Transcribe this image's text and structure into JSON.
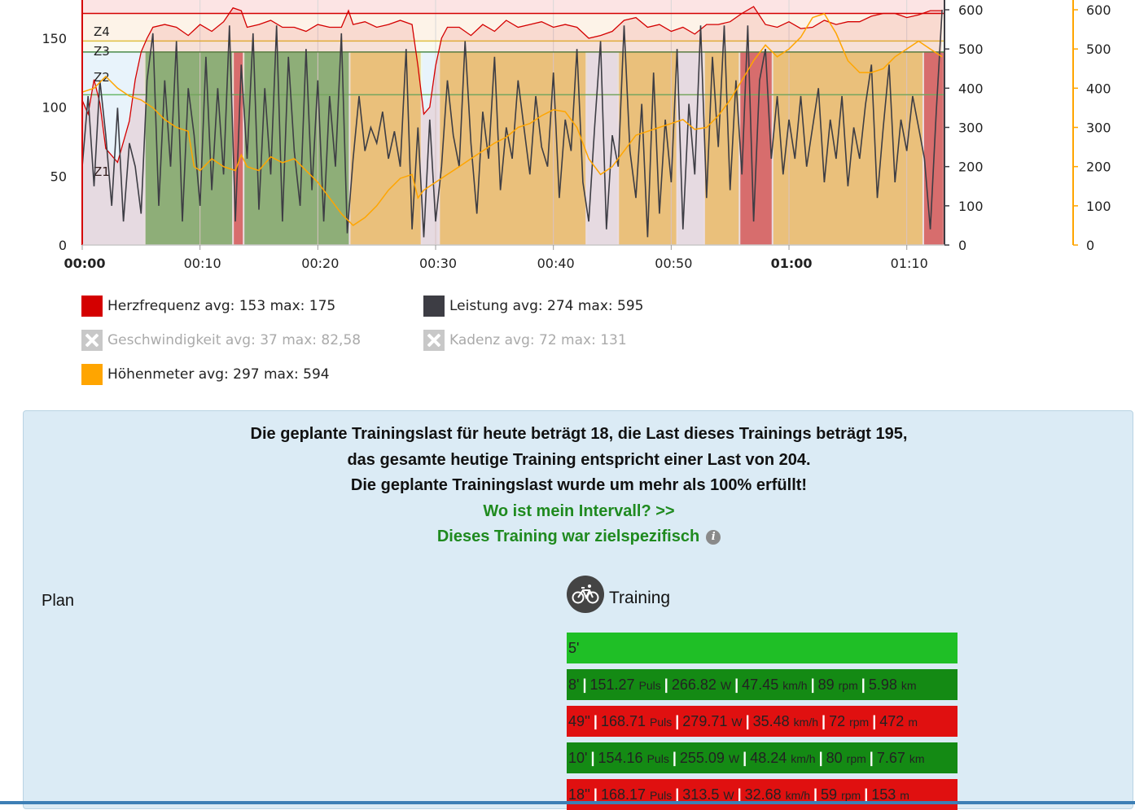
{
  "chart_data": {
    "type": "area",
    "x_ticks": [
      "00:00",
      "00:10",
      "00:20",
      "00:30",
      "00:40",
      "00:50",
      "01:00",
      "01:10"
    ],
    "x_ticks_bold": [
      "00:00",
      "01:00"
    ],
    "y_left_ticks": [
      0,
      50,
      100,
      150
    ],
    "y_right_ticks": [
      0,
      100,
      200,
      300,
      400,
      500,
      600
    ],
    "y_far_right_ticks": [
      0,
      100,
      200,
      300,
      400,
      500,
      600
    ],
    "zone_labels": [
      "Z4",
      "Z3",
      "Z2",
      "Z1"
    ],
    "power_zone_blocks": [
      {
        "start": 0.0,
        "end": 5.3,
        "zone": "Z1"
      },
      {
        "start": 5.3,
        "end": 12.8,
        "zone": "Z3"
      },
      {
        "start": 12.8,
        "end": 13.7,
        "zone": "Z5"
      },
      {
        "start": 13.7,
        "end": 22.7,
        "zone": "Z3"
      },
      {
        "start": 22.7,
        "end": 28.8,
        "zone": "Z4"
      },
      {
        "start": 28.8,
        "end": 30.3,
        "zone": "Z1"
      },
      {
        "start": 30.3,
        "end": 42.8,
        "zone": "Z4"
      },
      {
        "start": 42.8,
        "end": 45.5,
        "zone": "Z1"
      },
      {
        "start": 45.5,
        "end": 50.5,
        "zone": "Z4"
      },
      {
        "start": 50.5,
        "end": 52.8,
        "zone": "Z1"
      },
      {
        "start": 52.8,
        "end": 55.8,
        "zone": "Z4"
      },
      {
        "start": 55.8,
        "end": 58.6,
        "zone": "Z5"
      },
      {
        "start": 58.6,
        "end": 71.4,
        "zone": "Z4"
      },
      {
        "start": 71.4,
        "end": 73.2,
        "zone": "Z5"
      }
    ],
    "heart_rate_series": [
      [
        0,
        105
      ],
      [
        0.5,
        95
      ],
      [
        1,
        120
      ],
      [
        1.5,
        103
      ],
      [
        2,
        70
      ],
      [
        3,
        60
      ],
      [
        4,
        90
      ],
      [
        4.5,
        120
      ],
      [
        5,
        140
      ],
      [
        5.5,
        150
      ],
      [
        6,
        158
      ],
      [
        7,
        160
      ],
      [
        8,
        158
      ],
      [
        9,
        152
      ],
      [
        10,
        160
      ],
      [
        11,
        155
      ],
      [
        12,
        162
      ],
      [
        12.8,
        172
      ],
      [
        13.5,
        170
      ],
      [
        14,
        158
      ],
      [
        15,
        160
      ],
      [
        16,
        163
      ],
      [
        17,
        158
      ],
      [
        18,
        158
      ],
      [
        19,
        155
      ],
      [
        20,
        160
      ],
      [
        21,
        158
      ],
      [
        22,
        158
      ],
      [
        22.6,
        170
      ],
      [
        23,
        160
      ],
      [
        24,
        162
      ],
      [
        25,
        158
      ],
      [
        26,
        160
      ],
      [
        27,
        163
      ],
      [
        28,
        160
      ],
      [
        28.5,
        130
      ],
      [
        29,
        95
      ],
      [
        29.5,
        100
      ],
      [
        30,
        130
      ],
      [
        30.5,
        150
      ],
      [
        31,
        158
      ],
      [
        32,
        158
      ],
      [
        33,
        152
      ],
      [
        34,
        160
      ],
      [
        35,
        155
      ],
      [
        36,
        163
      ],
      [
        37,
        158
      ],
      [
        38,
        160
      ],
      [
        39,
        162
      ],
      [
        40,
        158
      ],
      [
        41,
        160
      ],
      [
        42,
        158
      ],
      [
        43,
        150
      ],
      [
        44,
        152
      ],
      [
        45,
        155
      ],
      [
        46,
        163
      ],
      [
        47,
        165
      ],
      [
        48,
        158
      ],
      [
        49,
        160
      ],
      [
        50,
        155
      ],
      [
        51,
        158
      ],
      [
        52,
        153
      ],
      [
        53,
        160
      ],
      [
        54,
        160
      ],
      [
        55,
        162
      ],
      [
        56,
        168
      ],
      [
        57,
        173
      ],
      [
        58,
        160
      ],
      [
        59,
        158
      ],
      [
        60,
        162
      ],
      [
        61,
        157
      ],
      [
        62,
        158
      ],
      [
        63,
        163
      ],
      [
        64,
        160
      ],
      [
        65,
        162
      ],
      [
        66,
        162
      ],
      [
        67,
        166
      ],
      [
        68,
        168
      ],
      [
        69,
        168
      ],
      [
        70,
        165
      ],
      [
        71,
        167
      ],
      [
        72,
        170
      ],
      [
        73,
        170
      ]
    ],
    "power_series": [
      [
        0,
        200
      ],
      [
        0.5,
        380
      ],
      [
        1,
        150
      ],
      [
        1.5,
        420
      ],
      [
        2,
        280
      ],
      [
        2.5,
        100
      ],
      [
        3,
        350
      ],
      [
        3.5,
        60
      ],
      [
        4,
        260
      ],
      [
        4.5,
        200
      ],
      [
        5,
        80
      ],
      [
        5.5,
        420
      ],
      [
        6,
        540
      ],
      [
        6.5,
        100
      ],
      [
        7,
        420
      ],
      [
        7.5,
        200
      ],
      [
        8,
        520
      ],
      [
        8.5,
        60
      ],
      [
        9,
        400
      ],
      [
        9.5,
        280
      ],
      [
        10,
        100
      ],
      [
        10.5,
        480
      ],
      [
        11,
        140
      ],
      [
        11.5,
        400
      ],
      [
        12,
        180
      ],
      [
        12.5,
        560
      ],
      [
        13,
        60
      ],
      [
        13.5,
        460
      ],
      [
        14,
        220
      ],
      [
        14.5,
        540
      ],
      [
        15,
        90
      ],
      [
        15.5,
        400
      ],
      [
        16,
        180
      ],
      [
        16.5,
        560
      ],
      [
        17,
        60
      ],
      [
        17.5,
        480
      ],
      [
        18,
        240
      ],
      [
        18.5,
        100
      ],
      [
        19,
        500
      ],
      [
        19.5,
        140
      ],
      [
        20,
        420
      ],
      [
        20.5,
        60
      ],
      [
        21,
        380
      ],
      [
        21.5,
        200
      ],
      [
        22,
        540
      ],
      [
        22.5,
        30
      ],
      [
        23,
        220
      ],
      [
        23.5,
        380
      ],
      [
        24,
        240
      ],
      [
        24.5,
        300
      ],
      [
        25,
        260
      ],
      [
        25.5,
        340
      ],
      [
        26,
        220
      ],
      [
        26.5,
        290
      ],
      [
        27,
        200
      ],
      [
        27.5,
        500
      ],
      [
        28,
        40
      ],
      [
        28.5,
        300
      ],
      [
        29,
        20
      ],
      [
        29.5,
        320
      ],
      [
        30,
        60
      ],
      [
        30.5,
        200
      ],
      [
        31,
        420
      ],
      [
        31.5,
        280
      ],
      [
        32,
        200
      ],
      [
        32.5,
        520
      ],
      [
        33,
        260
      ],
      [
        33.5,
        80
      ],
      [
        34,
        340
      ],
      [
        34.5,
        220
      ],
      [
        35,
        480
      ],
      [
        35.5,
        140
      ],
      [
        36,
        300
      ],
      [
        36.5,
        220
      ],
      [
        37,
        420
      ],
      [
        37.5,
        300
      ],
      [
        38,
        180
      ],
      [
        38.5,
        380
      ],
      [
        39,
        250
      ],
      [
        39.5,
        200
      ],
      [
        40,
        440
      ],
      [
        40.5,
        120
      ],
      [
        41,
        320
      ],
      [
        41.5,
        240
      ],
      [
        42,
        500
      ],
      [
        42.5,
        160
      ],
      [
        43,
        60
      ],
      [
        43.5,
        300
      ],
      [
        44,
        520
      ],
      [
        44.5,
        40
      ],
      [
        45,
        280
      ],
      [
        45.5,
        200
      ],
      [
        46,
        560
      ],
      [
        46.5,
        240
      ],
      [
        47,
        120
      ],
      [
        47.5,
        360
      ],
      [
        48,
        20
      ],
      [
        48.5,
        440
      ],
      [
        49,
        80
      ],
      [
        49.5,
        320
      ],
      [
        50,
        160
      ],
      [
        50.5,
        500
      ],
      [
        51,
        40
      ],
      [
        51.5,
        360
      ],
      [
        52,
        180
      ],
      [
        52.5,
        560
      ],
      [
        53,
        120
      ],
      [
        53.5,
        480
      ],
      [
        54,
        250
      ],
      [
        54.5,
        560
      ],
      [
        55,
        140
      ],
      [
        55.5,
        420
      ],
      [
        56,
        180
      ],
      [
        56.5,
        560
      ],
      [
        57,
        60
      ],
      [
        57.5,
        420
      ],
      [
        58,
        500
      ],
      [
        58.5,
        220
      ],
      [
        59,
        380
      ],
      [
        59.5,
        180
      ],
      [
        60,
        320
      ],
      [
        60.5,
        220
      ],
      [
        61,
        380
      ],
      [
        61.5,
        200
      ],
      [
        62,
        300
      ],
      [
        62.5,
        400
      ],
      [
        63,
        160
      ],
      [
        63.5,
        320
      ],
      [
        64,
        220
      ],
      [
        64.5,
        380
      ],
      [
        65,
        150
      ],
      [
        65.5,
        300
      ],
      [
        66,
        220
      ],
      [
        66.5,
        360
      ],
      [
        67,
        460
      ],
      [
        67.5,
        120
      ],
      [
        68,
        300
      ],
      [
        68.5,
        460
      ],
      [
        69,
        160
      ],
      [
        69.5,
        320
      ],
      [
        70,
        240
      ],
      [
        70.5,
        380
      ],
      [
        71,
        300
      ],
      [
        71.5,
        220
      ],
      [
        72,
        40
      ],
      [
        72.5,
        340
      ],
      [
        73,
        600
      ]
    ],
    "elevation_series": [
      [
        0,
        390
      ],
      [
        1,
        400
      ],
      [
        2,
        430
      ],
      [
        2.5,
        415
      ],
      [
        3,
        400
      ],
      [
        4,
        380
      ],
      [
        5,
        370
      ],
      [
        6,
        350
      ],
      [
        7,
        320
      ],
      [
        8,
        300
      ],
      [
        9,
        290
      ],
      [
        9.5,
        200
      ],
      [
        10,
        190
      ],
      [
        11,
        220
      ],
      [
        12,
        200
      ],
      [
        13,
        190
      ],
      [
        13.5,
        230
      ],
      [
        14,
        200
      ],
      [
        15,
        190
      ],
      [
        16,
        225
      ],
      [
        17,
        210
      ],
      [
        18,
        220
      ],
      [
        19,
        190
      ],
      [
        20,
        160
      ],
      [
        21,
        120
      ],
      [
        22,
        80
      ],
      [
        23,
        50
      ],
      [
        24,
        70
      ],
      [
        25,
        100
      ],
      [
        26,
        140
      ],
      [
        27,
        170
      ],
      [
        28,
        180
      ],
      [
        28.5,
        120
      ],
      [
        29,
        140
      ],
      [
        30,
        160
      ],
      [
        31,
        180
      ],
      [
        32,
        200
      ],
      [
        33,
        220
      ],
      [
        34,
        240
      ],
      [
        35,
        260
      ],
      [
        36,
        275
      ],
      [
        37,
        300
      ],
      [
        38,
        310
      ],
      [
        39,
        330
      ],
      [
        40,
        345
      ],
      [
        41,
        340
      ],
      [
        42,
        300
      ],
      [
        43,
        220
      ],
      [
        44,
        180
      ],
      [
        45,
        200
      ],
      [
        46,
        240
      ],
      [
        47,
        280
      ],
      [
        48,
        290
      ],
      [
        49,
        300
      ],
      [
        50,
        310
      ],
      [
        51,
        320
      ],
      [
        52,
        295
      ],
      [
        53,
        300
      ],
      [
        54,
        330
      ],
      [
        55,
        370
      ],
      [
        56,
        420
      ],
      [
        57,
        470
      ],
      [
        58,
        510
      ],
      [
        59,
        480
      ],
      [
        60,
        500
      ],
      [
        61,
        530
      ],
      [
        62,
        580
      ],
      [
        63,
        590
      ],
      [
        64,
        540
      ],
      [
        65,
        470
      ],
      [
        66,
        440
      ],
      [
        67,
        440
      ],
      [
        68,
        450
      ],
      [
        69,
        480
      ],
      [
        70,
        500
      ],
      [
        71,
        520
      ],
      [
        72,
        500
      ],
      [
        73,
        480
      ]
    ],
    "series": [
      {
        "name": "Herzfrequenz",
        "avg": "153",
        "max": "175",
        "color": "#d40000",
        "visible": true
      },
      {
        "name": "Leistung",
        "avg": "274",
        "max": "595",
        "color": "#3d3d44",
        "visible": true
      },
      {
        "name": "Geschwindigkeit",
        "avg": "37",
        "max": "82,58",
        "color": "#c8c8c8",
        "visible": false
      },
      {
        "name": "Kadenz",
        "avg": "72",
        "max": "131",
        "color": "#c8c8c8",
        "visible": false
      },
      {
        "name": "Höhenmeter",
        "avg": "297",
        "max": "594",
        "color": "#ffa500",
        "visible": true
      }
    ]
  },
  "legend": {
    "hr": {
      "label": "Herzfrequenz",
      "stats": "avg: 153 max: 175"
    },
    "power": {
      "label": "Leistung",
      "stats": "avg: 274 max: 595"
    },
    "speed": {
      "label": "Geschwindigkeit",
      "stats": "avg: 37 max: 82,58"
    },
    "cadence": {
      "label": "Kadenz",
      "stats": "avg: 72 max: 131"
    },
    "elevation": {
      "label": "Höhenmeter",
      "stats": "avg: 297 max: 594"
    }
  },
  "summary": {
    "line1": "Die geplante Trainingslast für heute beträgt 18, die Last dieses Trainings beträgt 195,",
    "line2": "das gesamte heutige Training entspricht einer Last von 204.",
    "line3": "Die geplante Trainingslast wurde um mehr als 100% erfüllt!",
    "interval_link": "Wo ist mein Intervall? >>",
    "specific": "Dieses Training war zielspezifisch",
    "info_glyph": "i"
  },
  "plan": {
    "label": "Plan"
  },
  "training": {
    "label": "Training",
    "icon": "bike-icon",
    "intervals": [
      {
        "dur": "5'",
        "color": "#1fbf26"
      },
      {
        "dur": "8'",
        "hr": "151.27",
        "hr_unit": "Puls",
        "w": "266.82",
        "w_unit": "W",
        "spd": "47.45",
        "spd_unit": "km/h",
        "cad": "89",
        "cad_unit": "rpm",
        "dist": "5.98",
        "dist_unit": "km",
        "color": "#148a14"
      },
      {
        "dur": "49''",
        "hr": "168.71",
        "hr_unit": "Puls",
        "w": "279.71",
        "w_unit": "W",
        "spd": "35.48",
        "spd_unit": "km/h",
        "cad": "72",
        "cad_unit": "rpm",
        "dist": "472",
        "dist_unit": "m",
        "color": "#e01010"
      },
      {
        "dur": "10'",
        "hr": "154.16",
        "hr_unit": "Puls",
        "w": "255.09",
        "w_unit": "W",
        "spd": "48.24",
        "spd_unit": "km/h",
        "cad": "80",
        "cad_unit": "rpm",
        "dist": "7.67",
        "dist_unit": "km",
        "color": "#148a14"
      },
      {
        "dur": "18''",
        "hr": "168.17",
        "hr_unit": "Puls",
        "w": "313.5",
        "w_unit": "W",
        "spd": "32.68",
        "spd_unit": "km/h",
        "cad": "59",
        "cad_unit": "rpm",
        "dist": "153",
        "dist_unit": "m",
        "color": "#e01010"
      }
    ]
  }
}
